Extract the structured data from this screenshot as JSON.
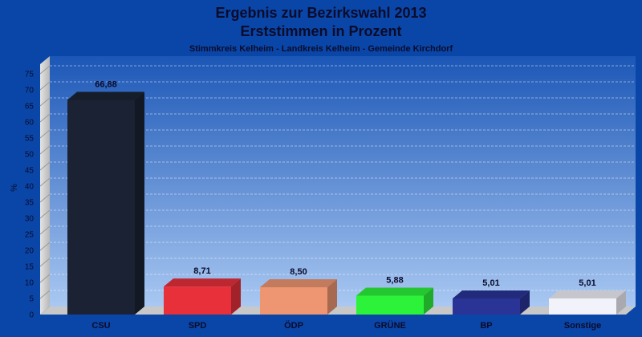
{
  "chart_data": {
    "type": "bar",
    "title": "Ergebnis zur Bezirkswahl 2013",
    "subtitle_line2": "Erststimmen in Prozent",
    "subtitle": "Stimmkreis Kelheim - Landkreis Kelheim - Gemeinde Kirchdorf",
    "ylabel": "%",
    "xlabel": "",
    "ylim": [
      0,
      78
    ],
    "yticks": [
      0,
      5,
      10,
      15,
      20,
      25,
      30,
      35,
      40,
      45,
      50,
      55,
      60,
      65,
      70,
      75
    ],
    "grid": true,
    "categories": [
      "CSU",
      "SPD",
      "ÖDP",
      "GRÜNE",
      "BP",
      "Sonstige"
    ],
    "values": [
      66.88,
      8.71,
      8.5,
      5.88,
      5.01,
      5.01
    ],
    "value_labels": [
      "66,88",
      "8,71",
      "8,50",
      "5,88",
      "5,01",
      "5,01"
    ],
    "colors": [
      "#1a2233",
      "#e8303a",
      "#ee9672",
      "#2cf33a",
      "#2a3496",
      "#f2f2fa"
    ]
  }
}
